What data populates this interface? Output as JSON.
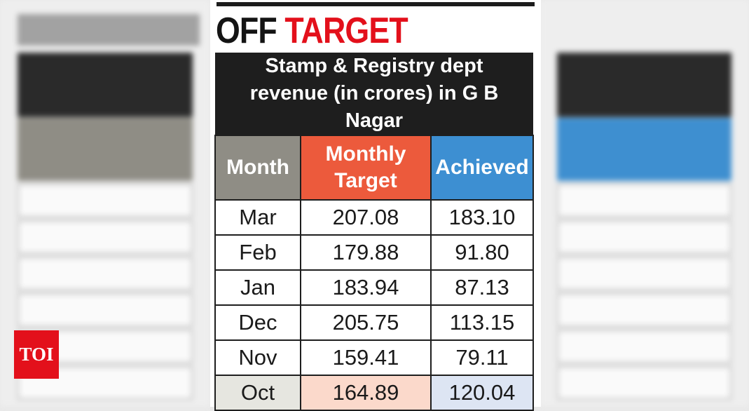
{
  "chart_data": {
    "type": "table",
    "title": "OFF TARGET",
    "title_parts": [
      "OFF",
      "TARGET"
    ],
    "subtitle": "Stamp & Registry dept revenue (in crores) in G B Nagar",
    "columns": [
      "Month",
      "Monthly Target",
      "Achieved"
    ],
    "rows": [
      [
        "Mar",
        "207.08",
        "183.10"
      ],
      [
        "Feb",
        "179.88",
        "91.80"
      ],
      [
        "Jan",
        "183.94",
        "87.13"
      ],
      [
        "Dec",
        "205.75",
        "113.15"
      ],
      [
        "Nov",
        "159.41",
        "79.11"
      ],
      [
        "Oct",
        "164.89",
        "120.04"
      ]
    ],
    "colors": {
      "title_accent": "#e3101b",
      "header_month": "#8f8d85",
      "header_target": "#ec5a3c",
      "header_achieved": "#3d8fd2",
      "last_row_month": "#e6e6e0",
      "last_row_target": "#fbd9cb",
      "last_row_achieved": "#dde5f3"
    }
  },
  "logo": {
    "text": "TOI",
    "color": "#e3101b"
  }
}
